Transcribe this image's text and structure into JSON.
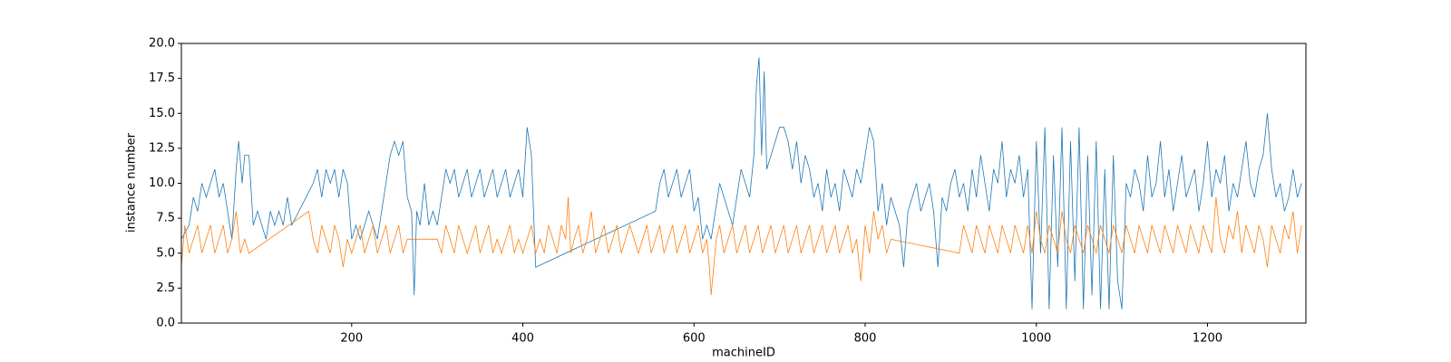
{
  "chart_data": {
    "type": "line",
    "xlabel": "machineID",
    "ylabel": "instance number",
    "xlim": [
      1,
      1315
    ],
    "xticks": [
      200,
      400,
      600,
      800,
      1000,
      1200
    ],
    "ylim": [
      0,
      20
    ],
    "yticks": [
      {
        "value": 0,
        "label": "0.0"
      },
      {
        "value": 2.5,
        "label": "2.5"
      },
      {
        "value": 5,
        "label": "5.0"
      },
      {
        "value": 7.5,
        "label": "7.5"
      },
      {
        "value": 10,
        "label": "10.0"
      },
      {
        "value": 12.5,
        "label": "12.5"
      },
      {
        "value": 15,
        "label": "15.0"
      },
      {
        "value": 17.5,
        "label": "17.5"
      },
      {
        "value": 20,
        "label": "20.0"
      }
    ],
    "grid": false,
    "series": [
      {
        "color": "#1f77b4",
        "x": [
          1,
          10,
          15,
          20,
          25,
          30,
          35,
          40,
          45,
          50,
          55,
          60,
          65,
          68,
          72,
          75,
          80,
          85,
          90,
          95,
          100,
          105,
          110,
          115,
          120,
          125,
          130,
          155,
          160,
          165,
          170,
          175,
          180,
          185,
          190,
          195,
          200,
          205,
          210,
          215,
          220,
          225,
          230,
          235,
          240,
          245,
          250,
          255,
          260,
          265,
          270,
          273,
          276,
          280,
          285,
          290,
          295,
          300,
          305,
          310,
          315,
          320,
          325,
          330,
          335,
          340,
          345,
          350,
          355,
          360,
          365,
          370,
          375,
          380,
          385,
          390,
          395,
          400,
          405,
          410,
          415,
          555,
          560,
          565,
          570,
          575,
          580,
          585,
          590,
          595,
          600,
          605,
          610,
          615,
          620,
          625,
          630,
          635,
          640,
          645,
          650,
          655,
          660,
          665,
          670,
          673,
          676,
          679,
          682,
          685,
          690,
          695,
          700,
          705,
          710,
          715,
          720,
          725,
          730,
          735,
          740,
          745,
          750,
          755,
          760,
          765,
          770,
          775,
          780,
          785,
          790,
          795,
          800,
          805,
          810,
          815,
          820,
          825,
          830,
          835,
          840,
          845,
          850,
          855,
          860,
          865,
          870,
          875,
          880,
          885,
          890,
          895,
          900,
          905,
          910,
          915,
          920,
          925,
          930,
          935,
          940,
          945,
          950,
          955,
          960,
          965,
          970,
          975,
          980,
          985,
          990,
          995,
          1000,
          1005,
          1010,
          1015,
          1020,
          1025,
          1030,
          1035,
          1040,
          1045,
          1050,
          1055,
          1060,
          1065,
          1070,
          1075,
          1080,
          1085,
          1090,
          1095,
          1100,
          1105,
          1110,
          1115,
          1120,
          1125,
          1130,
          1135,
          1140,
          1145,
          1150,
          1155,
          1160,
          1165,
          1170,
          1175,
          1180,
          1185,
          1190,
          1195,
          1200,
          1205,
          1210,
          1215,
          1220,
          1225,
          1230,
          1235,
          1240,
          1245,
          1250,
          1255,
          1260,
          1265,
          1270,
          1275,
          1280,
          1285,
          1290,
          1295,
          1300,
          1305,
          1310
        ],
        "values": [
          6,
          7,
          9,
          8,
          10,
          9,
          10,
          11,
          9,
          10,
          8,
          6,
          11,
          13,
          10,
          12,
          12,
          7,
          8,
          7,
          6,
          8,
          7,
          8,
          7,
          9,
          7,
          10,
          11,
          9,
          11,
          10,
          11,
          9,
          11,
          10,
          6,
          7,
          6,
          7,
          8,
          7,
          6,
          8,
          10,
          12,
          13,
          12,
          13,
          9,
          8,
          2,
          8,
          7,
          10,
          7,
          8,
          7,
          9,
          11,
          10,
          11,
          9,
          10,
          11,
          9,
          10,
          11,
          9,
          10,
          11,
          9,
          10,
          11,
          9,
          10,
          11,
          9,
          14,
          12,
          4,
          8,
          10,
          11,
          9,
          10,
          11,
          9,
          10,
          11,
          8,
          9,
          6,
          7,
          6,
          8,
          10,
          9,
          8,
          7,
          9,
          11,
          10,
          9,
          12,
          17,
          19,
          12,
          18,
          11,
          12,
          13,
          14,
          14,
          13,
          11,
          13,
          10,
          12,
          11,
          9,
          10,
          8,
          11,
          9,
          10,
          8,
          11,
          10,
          9,
          11,
          10,
          12,
          14,
          13,
          8,
          10,
          7,
          9,
          8,
          7,
          4,
          8,
          9,
          10,
          8,
          9,
          10,
          8,
          4,
          9,
          8,
          10,
          11,
          9,
          10,
          8,
          11,
          9,
          12,
          10,
          8,
          11,
          10,
          13,
          9,
          11,
          10,
          12,
          9,
          11,
          1,
          13,
          5,
          14,
          1,
          12,
          4,
          14,
          1,
          13,
          3,
          14,
          1,
          12,
          2,
          13,
          1,
          11,
          1,
          12,
          3,
          1,
          10,
          9,
          11,
          10,
          8,
          12,
          9,
          10,
          13,
          9,
          11,
          8,
          10,
          12,
          9,
          10,
          11,
          8,
          10,
          13,
          9,
          11,
          10,
          12,
          8,
          10,
          9,
          11,
          13,
          10,
          9,
          11,
          12,
          15,
          11,
          9,
          10,
          8,
          9,
          11,
          9,
          10
        ]
      },
      {
        "color": "#ff7f0e",
        "x": [
          1,
          5,
          10,
          15,
          20,
          25,
          30,
          35,
          40,
          45,
          50,
          55,
          60,
          65,
          70,
          75,
          80,
          150,
          155,
          160,
          165,
          170,
          175,
          180,
          185,
          190,
          195,
          200,
          205,
          210,
          215,
          220,
          225,
          230,
          235,
          240,
          245,
          250,
          255,
          260,
          265,
          270,
          300,
          305,
          310,
          315,
          320,
          325,
          330,
          335,
          340,
          345,
          350,
          355,
          360,
          365,
          370,
          375,
          380,
          385,
          390,
          395,
          400,
          405,
          410,
          415,
          420,
          425,
          430,
          435,
          440,
          445,
          450,
          453,
          456,
          460,
          465,
          470,
          475,
          480,
          485,
          490,
          495,
          500,
          505,
          510,
          515,
          520,
          525,
          530,
          535,
          540,
          545,
          550,
          555,
          560,
          565,
          570,
          575,
          580,
          585,
          590,
          595,
          600,
          605,
          610,
          615,
          618,
          620,
          623,
          626,
          630,
          635,
          640,
          645,
          650,
          655,
          660,
          665,
          670,
          675,
          680,
          685,
          690,
          695,
          700,
          705,
          710,
          715,
          720,
          725,
          730,
          735,
          740,
          745,
          750,
          755,
          760,
          765,
          770,
          775,
          780,
          785,
          790,
          795,
          800,
          805,
          810,
          815,
          820,
          825,
          830,
          910,
          915,
          920,
          925,
          930,
          935,
          940,
          945,
          950,
          955,
          960,
          965,
          970,
          975,
          980,
          985,
          990,
          995,
          1000,
          1005,
          1010,
          1015,
          1020,
          1025,
          1030,
          1035,
          1040,
          1045,
          1050,
          1055,
          1060,
          1065,
          1070,
          1075,
          1080,
          1085,
          1090,
          1095,
          1100,
          1105,
          1110,
          1115,
          1120,
          1125,
          1130,
          1135,
          1140,
          1145,
          1150,
          1155,
          1160,
          1165,
          1170,
          1175,
          1180,
          1185,
          1190,
          1195,
          1200,
          1205,
          1210,
          1215,
          1220,
          1225,
          1230,
          1235,
          1240,
          1245,
          1250,
          1255,
          1260,
          1265,
          1270,
          1275,
          1280,
          1285,
          1290,
          1295,
          1300,
          1305,
          1310
        ],
        "values": [
          4,
          7,
          5,
          6,
          7,
          5,
          6,
          7,
          5,
          6,
          7,
          5,
          6,
          8,
          5,
          6,
          5,
          8,
          6,
          5,
          7,
          6,
          5,
          7,
          6,
          4,
          6,
          5,
          6,
          7,
          5,
          6,
          7,
          5,
          6,
          7,
          5,
          6,
          7,
          5,
          6,
          6,
          6,
          5,
          7,
          6,
          5,
          7,
          6,
          5,
          6,
          7,
          5,
          6,
          7,
          5,
          6,
          5,
          6,
          7,
          5,
          6,
          5,
          6,
          7,
          5,
          6,
          5,
          7,
          6,
          5,
          7,
          6,
          9,
          5,
          6,
          7,
          5,
          6,
          8,
          5,
          6,
          7,
          5,
          6,
          7,
          5,
          6,
          7,
          6,
          5,
          6,
          7,
          5,
          6,
          7,
          5,
          6,
          7,
          5,
          6,
          7,
          5,
          6,
          7,
          5,
          6,
          4,
          2,
          4,
          6,
          7,
          5,
          6,
          7,
          5,
          6,
          7,
          5,
          6,
          7,
          5,
          6,
          7,
          5,
          6,
          7,
          5,
          6,
          7,
          5,
          6,
          7,
          5,
          6,
          7,
          5,
          6,
          7,
          5,
          6,
          7,
          5,
          6,
          3,
          7,
          5,
          8,
          6,
          7,
          5,
          6,
          5,
          7,
          6,
          5,
          7,
          6,
          5,
          7,
          6,
          5,
          7,
          6,
          5,
          7,
          6,
          5,
          7,
          5,
          8,
          6,
          5,
          7,
          6,
          5,
          8,
          6,
          5,
          7,
          6,
          5,
          7,
          6,
          5,
          7,
          6,
          5,
          7,
          6,
          5,
          7,
          6,
          5,
          7,
          6,
          5,
          7,
          6,
          5,
          7,
          6,
          5,
          7,
          6,
          5,
          7,
          6,
          5,
          7,
          6,
          5,
          9,
          6,
          5,
          7,
          6,
          8,
          5,
          7,
          6,
          5,
          7,
          6,
          4,
          7,
          6,
          5,
          7,
          6,
          8,
          5,
          7
        ]
      }
    ]
  }
}
